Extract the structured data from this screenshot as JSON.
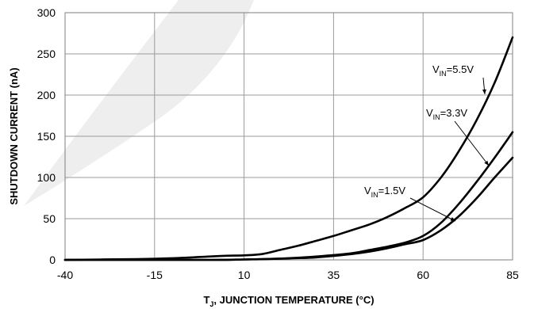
{
  "chart_data": {
    "type": "line",
    "xlabel": {
      "pre": "T",
      "sub": "J",
      "post": ", JUNCTION TEMPERATURE (°C)"
    },
    "ylabel": "SHUTDOWN CURRENT (nA)",
    "xlim": [
      -40,
      85
    ],
    "ylim": [
      0,
      300
    ],
    "x_ticks": [
      -40,
      -15,
      10,
      35,
      60,
      85
    ],
    "y_ticks": [
      0,
      50,
      100,
      150,
      200,
      250,
      300
    ],
    "grid": true,
    "series": [
      {
        "name": "VIN=5.5V",
        "label": {
          "pre": "V",
          "sub": "IN",
          "post": "=5.5V"
        },
        "x": [
          -40,
          -20,
          -10,
          0,
          5,
          10,
          15,
          20,
          25,
          30,
          35,
          40,
          45,
          50,
          55,
          60,
          65,
          70,
          75,
          80,
          85
        ],
        "y": [
          0,
          1,
          2,
          4,
          5,
          5.5,
          7,
          12,
          17,
          23,
          29,
          36,
          43,
          52,
          63,
          76,
          100,
          132,
          170,
          215,
          270
        ]
      },
      {
        "name": "VIN=3.3V",
        "label": {
          "pre": "V",
          "sub": "IN",
          "post": "=3.3V"
        },
        "x": [
          -40,
          0,
          10,
          20,
          30,
          40,
          45,
          50,
          55,
          60,
          65,
          70,
          75,
          80,
          85
        ],
        "y": [
          0,
          0,
          0.5,
          1.5,
          4,
          8,
          12,
          16,
          21,
          29,
          45,
          68,
          95,
          124,
          155
        ]
      },
      {
        "name": "VIN=1.5V",
        "label": {
          "pre": "V",
          "sub": "IN",
          "post": "=1.5V"
        },
        "x": [
          -40,
          0,
          10,
          20,
          30,
          40,
          45,
          50,
          55,
          60,
          65,
          70,
          75,
          80,
          85
        ],
        "y": [
          0,
          0,
          0.5,
          1.5,
          3,
          7,
          10,
          14,
          19,
          24,
          36,
          53,
          75,
          100,
          124
        ]
      }
    ]
  }
}
